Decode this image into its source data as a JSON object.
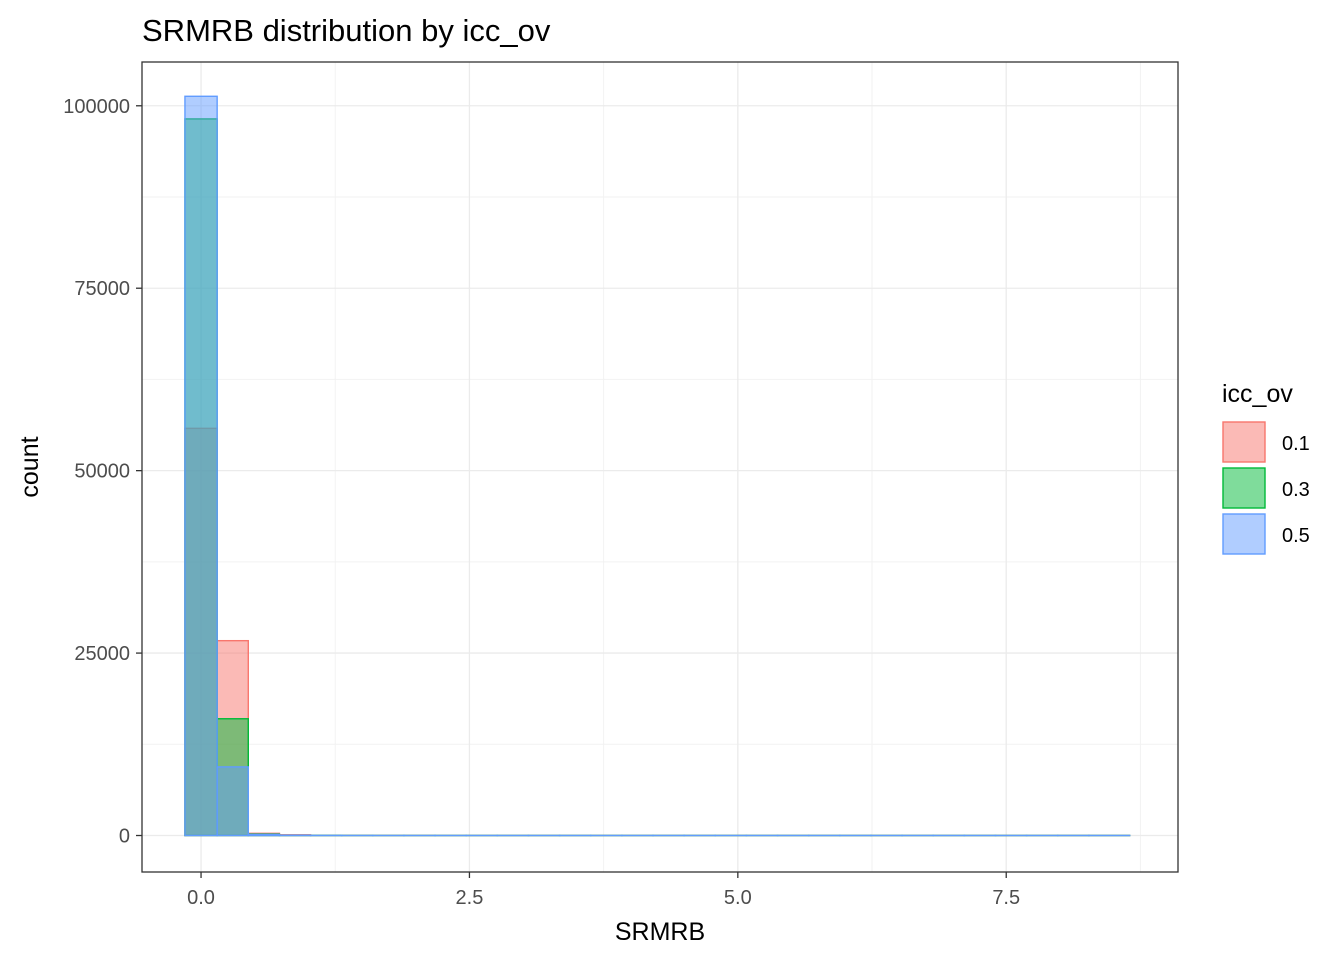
{
  "chart_data": {
    "type": "bar",
    "subtype": "overlaid-histogram",
    "title": "SRMRB distribution by icc_ov",
    "xlabel": "SRMRB",
    "ylabel": "count",
    "xlim": [
      -0.55,
      9.1
    ],
    "ylim": [
      -5000,
      106000
    ],
    "x_ticks": [
      0.0,
      2.5,
      5.0,
      7.5
    ],
    "x_tick_labels": [
      "0.0",
      "2.5",
      "5.0",
      "7.5"
    ],
    "y_ticks": [
      0,
      25000,
      50000,
      75000,
      100000
    ],
    "y_tick_labels": [
      "0",
      "25000",
      "50000",
      "75000",
      "100000"
    ],
    "grid": true,
    "bin_edges": [
      -0.15,
      0.15,
      0.44,
      0.73,
      1.02,
      1.31,
      1.6,
      1.89,
      2.18,
      2.47,
      2.76,
      3.05,
      3.34,
      3.63,
      3.92,
      4.21,
      4.5,
      4.79,
      5.08,
      5.37,
      5.66,
      5.95,
      6.24,
      6.53,
      6.82,
      7.11,
      7.4,
      7.69,
      7.98,
      8.27,
      8.65
    ],
    "legend": {
      "title": "icc_ov",
      "position": "right"
    },
    "series": [
      {
        "name": "0.1",
        "line_color": "#F8766D",
        "fill_color": "#F8766D",
        "counts": [
          55800,
          26700,
          300,
          100,
          30,
          20,
          10,
          10,
          5,
          5,
          5,
          5,
          5,
          5,
          5,
          5,
          5,
          5,
          5,
          5,
          5,
          5,
          5,
          5,
          5,
          5,
          5,
          5,
          5,
          5
        ]
      },
      {
        "name": "0.3",
        "line_color": "#00BA38",
        "fill_color": "#00BA38",
        "counts": [
          98200,
          16000,
          200,
          50,
          20,
          10,
          5,
          5,
          5,
          5,
          5,
          5,
          5,
          5,
          5,
          5,
          5,
          5,
          5,
          5,
          5,
          5,
          5,
          5,
          5,
          5,
          5,
          5,
          5,
          5
        ]
      },
      {
        "name": "0.5",
        "line_color": "#619CFF",
        "fill_color": "#619CFF",
        "counts": [
          101300,
          9400,
          150,
          40,
          15,
          10,
          5,
          5,
          5,
          5,
          5,
          5,
          5,
          5,
          5,
          5,
          5,
          5,
          5,
          5,
          5,
          5,
          5,
          5,
          5,
          5,
          5,
          5,
          5,
          5
        ]
      }
    ]
  }
}
